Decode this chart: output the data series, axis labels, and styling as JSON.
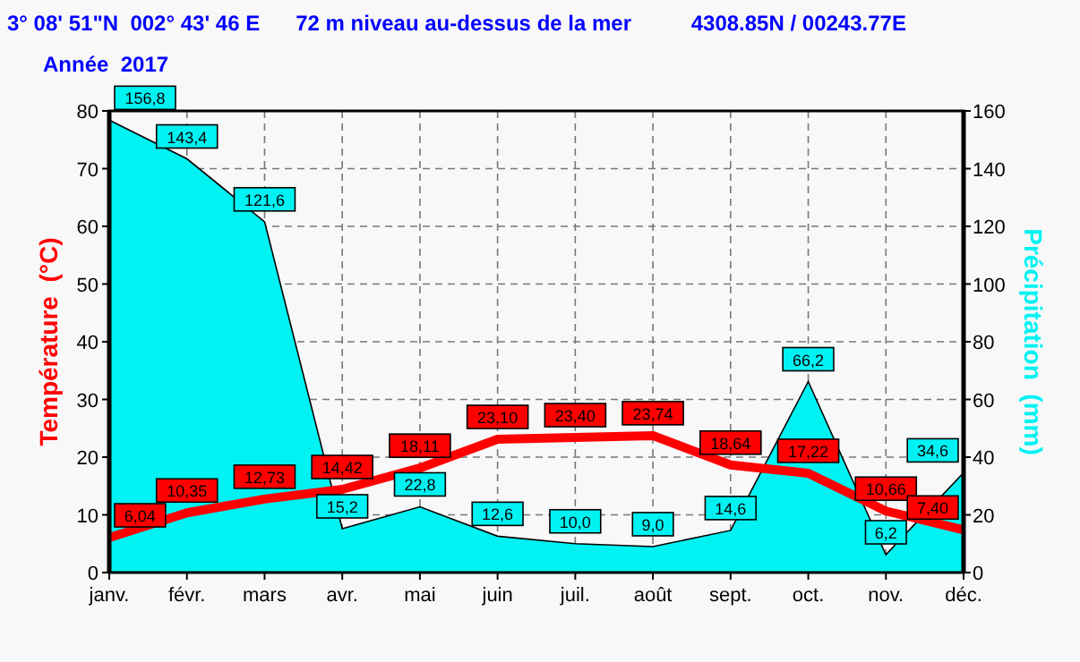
{
  "chart_data": {
    "type": "line",
    "title": "3° 08' 51\"N  002° 43' 46 E      72 m niveau au-dessus de la mer          4308.85N / 00243.77E",
    "subtitle": "Année  2017",
    "ylabel": "Température  (°C)",
    "y2label": "Précipitation  (mm)",
    "categories": [
      "janv.",
      "févr.",
      "mars",
      "avr.",
      "mai",
      "juin",
      "juil.",
      "août",
      "sept.",
      "oct.",
      "nov.",
      "déc."
    ],
    "series": [
      {
        "name": null,
        "type": "area",
        "axis": "y2",
        "color": "#00f2f2",
        "values": [
          156.8,
          143.4,
          121.6,
          15.2,
          22.8,
          12.6,
          10.0,
          9.0,
          14.6,
          66.2,
          6.2,
          34.6
        ],
        "value_labels": [
          "156,8",
          "143,4",
          "121,6",
          "15,2",
          "22,8",
          "12,6",
          "10,0",
          "9,0",
          "14,6",
          "66,2",
          "6,2",
          "34,6"
        ]
      },
      {
        "name": null,
        "color": "#ff0000",
        "values": [
          6.04,
          10.35,
          12.73,
          14.42,
          18.11,
          23.1,
          23.4,
          23.74,
          18.64,
          17.22,
          10.66,
          7.4
        ],
        "value_labels": [
          "6,04",
          "10,35",
          "12,73",
          "14,42",
          "18,11",
          "23,10",
          "23,40",
          "23,74",
          "18,64",
          "17,22",
          "10,66",
          "7,40"
        ]
      }
    ],
    "ylim": [
      0,
      80
    ],
    "yticks": [
      0,
      10,
      20,
      30,
      40,
      50,
      60,
      70,
      80
    ],
    "y2lim": [
      0,
      160
    ],
    "y2ticks": [
      0,
      20,
      40,
      60,
      80,
      100,
      120,
      140,
      160
    ],
    "grid": true,
    "marker": "none",
    "line_style": "solid"
  }
}
